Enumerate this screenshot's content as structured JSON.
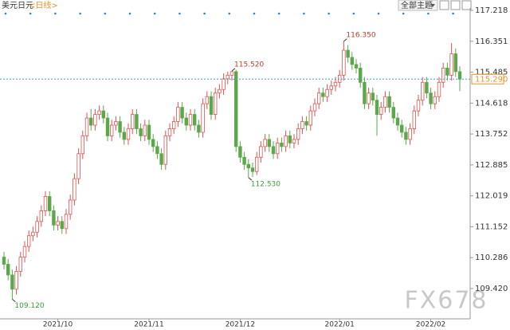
{
  "chart_data": {
    "type": "candlestick",
    "title": "美元日元",
    "subtitle": "<日线>",
    "menu": "全部主题",
    "watermark": "FX678",
    "up_color": "#e0524f",
    "down_color": "#5aa84a",
    "ylim": [
      108.57,
      117.285
    ],
    "yticks": [
      117.218,
      116.351,
      115.485,
      114.618,
      113.752,
      112.885,
      112.019,
      111.152,
      110.286,
      {
        "value": 109.42,
        "label": "109.420"
      }
    ],
    "last_price": {
      "value": 115.29,
      "label": "115.290"
    },
    "annotations": [
      {
        "text": "109.120",
        "value": 109.12,
        "kind": "low",
        "color": "#3a9a3a"
      },
      {
        "text": "115.520",
        "value": 115.52,
        "kind": "high",
        "color": "#c0392b"
      },
      {
        "text": "112.530",
        "value": 112.53,
        "kind": "low",
        "color": "#3a9a3a"
      },
      {
        "text": "116.350",
        "value": 116.35,
        "kind": "high",
        "color": "#c0392b"
      }
    ],
    "categories": [
      null,
      null,
      null,
      null,
      null,
      null,
      null,
      null,
      null,
      null,
      null,
      null,
      null,
      "2021/10",
      null,
      null,
      null,
      null,
      null,
      null,
      null,
      null,
      null,
      null,
      null,
      null,
      null,
      null,
      null,
      null,
      null,
      null,
      null,
      null,
      null,
      "2021/11",
      null,
      null,
      null,
      null,
      null,
      null,
      null,
      null,
      null,
      null,
      null,
      null,
      null,
      null,
      null,
      null,
      null,
      null,
      null,
      null,
      null,
      "2021/12",
      null,
      null,
      null,
      null,
      null,
      null,
      null,
      null,
      null,
      null,
      null,
      null,
      null,
      null,
      null,
      null,
      null,
      null,
      null,
      null,
      null,
      null,
      null,
      "2022/01",
      null,
      null,
      null,
      null,
      null,
      null,
      null,
      null,
      null,
      null,
      null,
      null,
      null,
      null,
      null,
      null,
      null,
      null,
      null,
      null,
      null,
      "2022/02",
      null,
      null,
      null,
      null,
      null,
      null,
      null
    ],
    "ohlc": [
      [
        110.3,
        110.45,
        109.95,
        110.1
      ],
      [
        110.1,
        110.25,
        109.65,
        109.8
      ],
      [
        109.8,
        109.95,
        109.12,
        109.4
      ],
      [
        109.4,
        110.05,
        109.25,
        109.9
      ],
      [
        109.9,
        110.45,
        109.75,
        110.3
      ],
      [
        110.3,
        110.75,
        110.15,
        110.6
      ],
      [
        110.6,
        111.05,
        110.45,
        110.9
      ],
      [
        110.9,
        111.15,
        110.75,
        111.0
      ],
      [
        111.0,
        111.45,
        110.85,
        111.3
      ],
      [
        111.3,
        111.75,
        111.15,
        111.6
      ],
      [
        111.6,
        112.15,
        111.45,
        112.0
      ],
      [
        112.0,
        112.15,
        111.45,
        111.6
      ],
      [
        111.6,
        111.75,
        111.05,
        111.2
      ],
      [
        111.2,
        111.45,
        111.05,
        111.3
      ],
      [
        111.3,
        111.45,
        110.95,
        111.1
      ],
      [
        111.1,
        111.65,
        110.95,
        111.5
      ],
      [
        111.5,
        112.05,
        111.35,
        111.9
      ],
      [
        111.9,
        112.65,
        111.75,
        112.5
      ],
      [
        112.5,
        113.35,
        112.35,
        113.2
      ],
      [
        113.2,
        113.85,
        113.05,
        113.7
      ],
      [
        113.7,
        114.35,
        113.55,
        114.2
      ],
      [
        114.2,
        114.45,
        113.85,
        114.0
      ],
      [
        114.0,
        114.45,
        113.85,
        114.3
      ],
      [
        114.3,
        114.55,
        114.15,
        114.4
      ],
      [
        114.4,
        114.55,
        114.05,
        114.2
      ],
      [
        114.2,
        114.35,
        113.55,
        113.7
      ],
      [
        113.7,
        114.15,
        113.55,
        114.0
      ],
      [
        114.0,
        114.25,
        113.85,
        114.1
      ],
      [
        114.1,
        114.25,
        113.65,
        113.8
      ],
      [
        113.8,
        113.95,
        113.45,
        113.6
      ],
      [
        113.6,
        114.05,
        113.45,
        113.9
      ],
      [
        113.9,
        114.45,
        113.75,
        114.3
      ],
      [
        114.3,
        114.45,
        113.75,
        113.9
      ],
      [
        113.9,
        114.05,
        113.55,
        113.7
      ],
      [
        113.7,
        114.15,
        113.55,
        114.0
      ],
      [
        114.0,
        114.15,
        113.45,
        113.6
      ],
      [
        113.6,
        113.75,
        113.25,
        113.4
      ],
      [
        113.4,
        113.55,
        113.05,
        113.2
      ],
      [
        113.2,
        113.35,
        112.75,
        112.9
      ],
      [
        112.9,
        113.85,
        112.75,
        113.7
      ],
      [
        113.7,
        114.05,
        113.55,
        113.9
      ],
      [
        113.9,
        114.25,
        113.75,
        114.1
      ],
      [
        114.1,
        114.65,
        113.95,
        114.5
      ],
      [
        114.5,
        114.65,
        114.05,
        114.2
      ],
      [
        114.2,
        114.35,
        113.85,
        114.0
      ],
      [
        114.0,
        114.45,
        113.85,
        114.3
      ],
      [
        114.3,
        114.45,
        113.85,
        114.0
      ],
      [
        114.0,
        114.15,
        113.65,
        113.8
      ],
      [
        113.8,
        114.75,
        113.65,
        114.6
      ],
      [
        114.6,
        114.95,
        114.45,
        114.8
      ],
      [
        114.8,
        114.95,
        114.15,
        114.3
      ],
      [
        114.3,
        115.05,
        114.15,
        114.9
      ],
      [
        114.9,
        115.15,
        114.75,
        115.0
      ],
      [
        115.0,
        115.45,
        114.85,
        115.3
      ],
      [
        115.3,
        115.5,
        115.15,
        115.4
      ],
      [
        115.4,
        115.52,
        115.25,
        115.5
      ],
      [
        115.5,
        115.55,
        113.25,
        113.4
      ],
      [
        113.4,
        113.55,
        112.95,
        113.1
      ],
      [
        113.1,
        113.25,
        112.75,
        112.9
      ],
      [
        112.9,
        113.05,
        112.53,
        112.8
      ],
      [
        112.8,
        112.95,
        112.55,
        112.7
      ],
      [
        112.7,
        113.25,
        112.6,
        113.1
      ],
      [
        113.1,
        113.55,
        112.95,
        113.4
      ],
      [
        113.4,
        113.75,
        113.25,
        113.6
      ],
      [
        113.6,
        113.75,
        113.25,
        113.4
      ],
      [
        113.4,
        113.55,
        113.05,
        113.2
      ],
      [
        113.2,
        113.65,
        113.05,
        113.5
      ],
      [
        113.5,
        113.65,
        113.25,
        113.4
      ],
      [
        113.4,
        113.85,
        113.25,
        113.7
      ],
      [
        113.7,
        113.85,
        113.35,
        113.5
      ],
      [
        113.5,
        113.75,
        113.35,
        113.6
      ],
      [
        113.6,
        114.05,
        113.45,
        113.9
      ],
      [
        113.9,
        114.25,
        113.75,
        114.1
      ],
      [
        114.1,
        114.25,
        113.85,
        114.0
      ],
      [
        114.0,
        114.55,
        113.85,
        114.4
      ],
      [
        114.4,
        114.75,
        114.25,
        114.6
      ],
      [
        114.6,
        115.05,
        114.45,
        114.9
      ],
      [
        114.9,
        115.05,
        114.65,
        114.8
      ],
      [
        114.8,
        115.15,
        114.65,
        115.0
      ],
      [
        115.0,
        115.25,
        114.85,
        115.1
      ],
      [
        115.1,
        115.35,
        114.95,
        115.2
      ],
      [
        115.2,
        115.55,
        115.05,
        115.4
      ],
      [
        115.4,
        116.35,
        115.25,
        116.1
      ],
      [
        116.1,
        116.25,
        115.75,
        115.9
      ],
      [
        115.9,
        116.05,
        115.55,
        115.7
      ],
      [
        115.7,
        115.85,
        115.45,
        115.6
      ],
      [
        115.6,
        115.75,
        115.05,
        115.2
      ],
      [
        115.2,
        115.35,
        114.45,
        114.6
      ],
      [
        114.6,
        115.05,
        114.45,
        114.9
      ],
      [
        114.9,
        115.05,
        114.55,
        114.7
      ],
      [
        114.7,
        114.85,
        113.7,
        114.3
      ],
      [
        114.3,
        114.65,
        114.15,
        114.5
      ],
      [
        114.5,
        114.95,
        114.35,
        114.8
      ],
      [
        114.8,
        114.95,
        114.35,
        114.5
      ],
      [
        114.5,
        114.65,
        114.05,
        114.2
      ],
      [
        114.2,
        114.35,
        113.85,
        114.0
      ],
      [
        114.0,
        114.15,
        113.65,
        113.8
      ],
      [
        113.8,
        113.95,
        113.45,
        113.6
      ],
      [
        113.6,
        114.05,
        113.45,
        113.9
      ],
      [
        113.9,
        114.55,
        113.75,
        114.4
      ],
      [
        114.4,
        114.85,
        114.25,
        114.7
      ],
      [
        114.7,
        115.35,
        114.55,
        115.2
      ],
      [
        115.2,
        115.35,
        114.75,
        114.9
      ],
      [
        114.9,
        115.05,
        114.45,
        114.6
      ],
      [
        114.6,
        114.95,
        114.45,
        114.8
      ],
      [
        114.8,
        115.35,
        114.65,
        115.2
      ],
      [
        115.2,
        115.75,
        115.05,
        115.6
      ],
      [
        115.6,
        115.75,
        115.25,
        115.4
      ],
      [
        115.4,
        116.3,
        115.25,
        116.0
      ],
      [
        116.0,
        116.15,
        115.35,
        115.5
      ],
      [
        115.5,
        115.65,
        114.95,
        115.29
      ]
    ]
  }
}
